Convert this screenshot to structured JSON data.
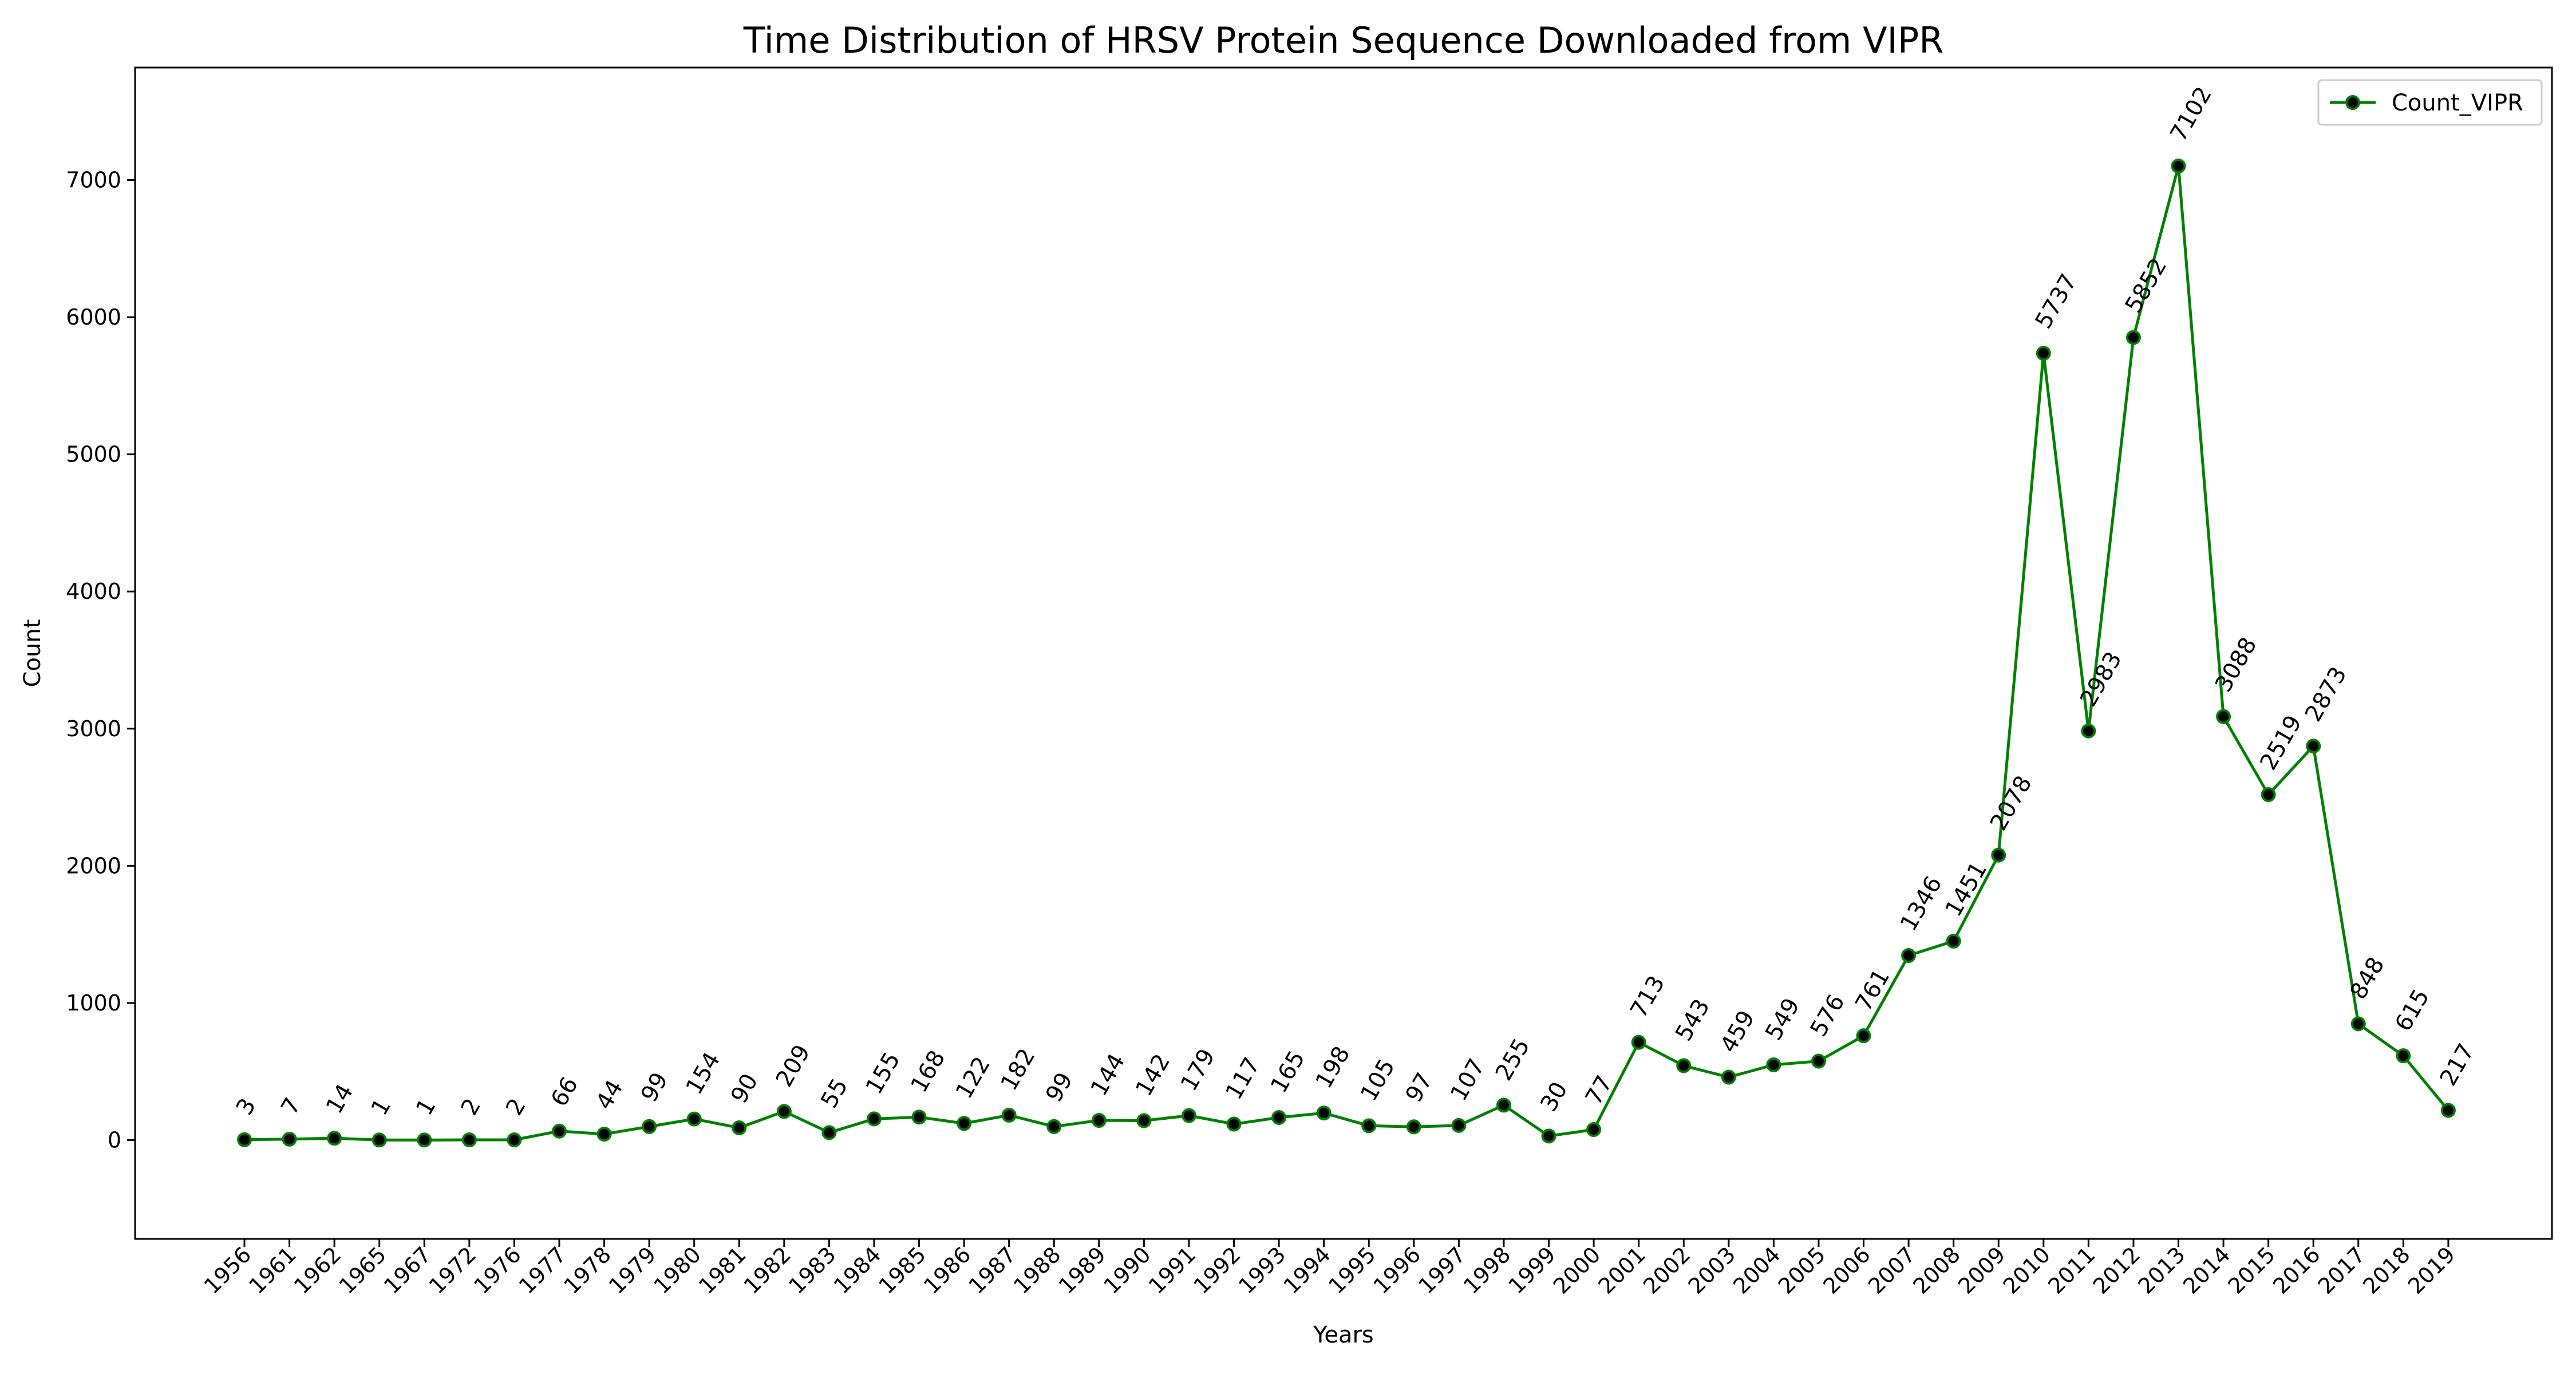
{
  "chart_data": {
    "type": "line",
    "title": "Time Distribution of HRSV Protein Sequence Downloaded from VIPR",
    "xlabel": "Years",
    "ylabel": "Count",
    "ylim": [
      -720,
      7820
    ],
    "yticks": [
      0,
      1000,
      2000,
      3000,
      4000,
      5000,
      6000,
      7000
    ],
    "grid": false,
    "legend_position": "top-right",
    "categories": [
      "1956",
      "1961",
      "1962",
      "1965",
      "1967",
      "1972",
      "1976",
      "1977",
      "1978",
      "1979",
      "1980",
      "1981",
      "1982",
      "1983",
      "1984",
      "1985",
      "1986",
      "1987",
      "1988",
      "1989",
      "1990",
      "1991",
      "1992",
      "1993",
      "1994",
      "1995",
      "1996",
      "1997",
      "1998",
      "1999",
      "2000",
      "2001",
      "2002",
      "2003",
      "2004",
      "2005",
      "2006",
      "2007",
      "2008",
      "2009",
      "2010",
      "2011",
      "2012",
      "2013",
      "2014",
      "2015",
      "2016",
      "2017",
      "2018",
      "2019"
    ],
    "series": [
      {
        "name": "Count_VIPR",
        "color": "#008000",
        "marker_color": "#000000",
        "values": [
          3,
          7,
          14,
          1,
          1,
          2,
          2,
          66,
          44,
          99,
          154,
          90,
          209,
          55,
          155,
          168,
          122,
          182,
          99,
          144,
          142,
          179,
          117,
          165,
          198,
          105,
          97,
          107,
          255,
          30,
          77,
          713,
          543,
          459,
          549,
          576,
          761,
          1346,
          1451,
          2078,
          5737,
          2983,
          5852,
          7102,
          3088,
          2519,
          2873,
          848,
          615,
          217
        ]
      }
    ]
  }
}
